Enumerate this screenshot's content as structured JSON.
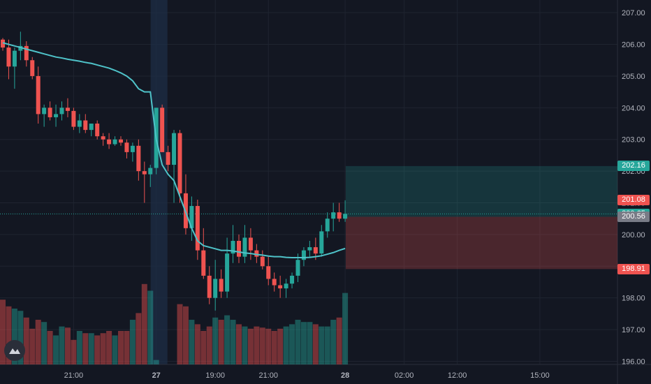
{
  "chart_data": {
    "type": "candlestick",
    "y_axis": {
      "ticks": [
        "207.00",
        "206.00",
        "205.00",
        "204.00",
        "203.00",
        "202.00",
        "201.00",
        "200.00",
        "199.00",
        "198.00",
        "197.00",
        "196.00"
      ],
      "range": [
        195.9,
        207.4
      ]
    },
    "x_axis": {
      "ticks": [
        {
          "label": "21:00",
          "bar": 12,
          "bold": false
        },
        {
          "label": "27",
          "bar": 26,
          "bold": true
        },
        {
          "label": "19:00",
          "bar": 36,
          "bold": false
        },
        {
          "label": "21:00",
          "bar": 45,
          "bold": false
        },
        {
          "label": "28",
          "bar": 58,
          "bold": true
        },
        {
          "label": "02:00",
          "bar": 68,
          "bold": false
        },
        {
          "label": "12:00",
          "bar": 77,
          "bold": false
        },
        {
          "label": "15:00",
          "bar": 91,
          "bold": false
        }
      ]
    },
    "session_break_bar": 26,
    "candles": [
      [
        206.15,
        206.2,
        205.8,
        205.9
      ],
      [
        205.9,
        206.15,
        204.9,
        205.3
      ],
      [
        205.3,
        205.9,
        204.6,
        205.8
      ],
      [
        205.8,
        206.4,
        205.5,
        205.95
      ],
      [
        205.95,
        206.1,
        205.3,
        205.5
      ],
      [
        205.5,
        205.6,
        204.9,
        205.0
      ],
      [
        205.0,
        205.3,
        203.5,
        203.8
      ],
      [
        203.8,
        204.1,
        203.4,
        204.0
      ],
      [
        204.0,
        204.2,
        203.6,
        203.7
      ],
      [
        203.7,
        204.1,
        203.4,
        203.8
      ],
      [
        203.8,
        204.2,
        203.6,
        204.0
      ],
      [
        204.0,
        204.3,
        203.7,
        203.9
      ],
      [
        203.9,
        204.0,
        203.3,
        203.4
      ],
      [
        203.4,
        203.8,
        203.2,
        203.6
      ],
      [
        203.6,
        203.8,
        203.2,
        203.3
      ],
      [
        203.3,
        203.5,
        203.1,
        203.5
      ],
      [
        203.5,
        203.6,
        203.0,
        203.1
      ],
      [
        203.1,
        203.2,
        202.8,
        203.0
      ],
      [
        203.0,
        203.2,
        202.7,
        202.85
      ],
      [
        202.85,
        203.1,
        202.8,
        203.0
      ],
      [
        203.0,
        203.1,
        202.8,
        202.9
      ],
      [
        202.9,
        203.0,
        202.4,
        202.6
      ],
      [
        202.6,
        202.9,
        202.3,
        202.8
      ],
      [
        202.8,
        203.0,
        201.7,
        202.0
      ],
      [
        202.0,
        202.3,
        201.0,
        201.9
      ],
      [
        201.9,
        202.2,
        201.5,
        202.1
      ],
      [
        202.1,
        204.0,
        201.9,
        204.0
      ],
      [
        204.0,
        204.1,
        202.6,
        202.6
      ],
      [
        202.6,
        202.8,
        202.0,
        202.2
      ],
      [
        202.2,
        203.3,
        201.0,
        203.2
      ],
      [
        203.2,
        203.3,
        201.0,
        201.3
      ],
      [
        201.3,
        201.9,
        200.0,
        200.2
      ],
      [
        200.2,
        201.2,
        199.8,
        200.9
      ],
      [
        200.9,
        201.1,
        199.2,
        199.5
      ],
      [
        199.5,
        200.2,
        198.6,
        198.7
      ],
      [
        198.7,
        199.0,
        197.8,
        198.0
      ],
      [
        198.0,
        199.2,
        197.6,
        198.6
      ],
      [
        198.6,
        198.9,
        198.0,
        198.2
      ],
      [
        198.2,
        199.9,
        198.0,
        199.4
      ],
      [
        199.4,
        200.3,
        199.1,
        199.8
      ],
      [
        199.8,
        200.0,
        199.1,
        199.3
      ],
      [
        199.3,
        200.3,
        199.1,
        199.9
      ],
      [
        199.9,
        200.2,
        199.2,
        199.5
      ],
      [
        199.5,
        199.7,
        199.1,
        199.3
      ],
      [
        199.3,
        199.5,
        198.9,
        199.0
      ],
      [
        199.0,
        199.3,
        198.4,
        198.6
      ],
      [
        198.6,
        198.8,
        198.2,
        198.4
      ],
      [
        198.4,
        198.7,
        198.0,
        198.3
      ],
      [
        198.3,
        198.6,
        198.0,
        198.45
      ],
      [
        198.45,
        198.8,
        198.3,
        198.7
      ],
      [
        198.7,
        199.4,
        198.5,
        199.2
      ],
      [
        199.2,
        199.6,
        199.0,
        199.5
      ],
      [
        199.5,
        199.8,
        199.3,
        199.6
      ],
      [
        199.6,
        199.9,
        199.2,
        199.4
      ],
      [
        199.4,
        200.3,
        199.3,
        200.1
      ],
      [
        200.1,
        200.7,
        199.9,
        200.5
      ],
      [
        200.5,
        201.0,
        200.1,
        200.7
      ],
      [
        200.7,
        201.0,
        200.4,
        200.5
      ],
      [
        200.5,
        201.08,
        200.4,
        200.65
      ]
    ],
    "vwap": [
      206.05,
      206.0,
      205.95,
      205.9,
      205.85,
      205.8,
      205.75,
      205.7,
      205.65,
      205.6,
      205.57,
      205.53,
      205.5,
      205.47,
      205.43,
      205.4,
      205.35,
      205.3,
      205.25,
      205.18,
      205.1,
      205.0,
      204.85,
      204.6,
      204.5,
      204.5,
      203.0,
      202.2,
      201.9,
      201.7,
      201.2,
      200.7,
      200.2,
      199.8,
      199.65,
      199.6,
      199.55,
      199.5,
      199.5,
      199.48,
      199.45,
      199.42,
      199.4,
      199.37,
      199.35,
      199.32,
      199.3,
      199.3,
      199.28,
      199.27,
      199.27,
      199.27,
      199.28,
      199.3,
      199.33,
      199.38,
      199.43,
      199.5,
      199.56
    ],
    "volumes": [
      58,
      52,
      50,
      48,
      42,
      32,
      40,
      38,
      30,
      26,
      34,
      33,
      22,
      30,
      28,
      28,
      26,
      28,
      30,
      26,
      30,
      30,
      40,
      46,
      72,
      66,
      4,
      0,
      0,
      0,
      54,
      52,
      40,
      36,
      30,
      34,
      42,
      40,
      44,
      40,
      36,
      34,
      32,
      34,
      33,
      32,
      30,
      32,
      34,
      36,
      40,
      38,
      38,
      36,
      34,
      34,
      40,
      42,
      64
    ],
    "price_labels": [
      {
        "text": "202.16",
        "value": 202.16,
        "color": "#26a69a"
      },
      {
        "text": "201.08",
        "value": 201.08,
        "color": "#ef5350"
      },
      {
        "text": "200.65",
        "value": 200.65,
        "color": "#26a69a"
      },
      {
        "text": "200.56",
        "value": 200.56,
        "color": "#787b86"
      },
      {
        "text": "198.91",
        "value": 198.91,
        "color": "#ef5350"
      }
    ],
    "position": {
      "entry": 200.56,
      "target": 202.16,
      "stop": 198.91
    },
    "current_price": 200.65
  },
  "colors": {
    "up": "#26a69a",
    "down": "#ef5350",
    "vwap": "#4fc3c9",
    "grid": "#1f2430",
    "axis_text": "#b2b5be"
  },
  "logo_icon": "tradingview-cloud-icon"
}
